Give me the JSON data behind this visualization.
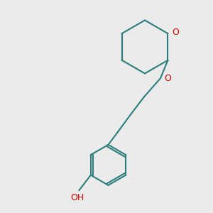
{
  "background_color": "#ebebeb",
  "bond_color": "#2d7d7d",
  "oxygen_color": "#cc0000",
  "bond_width": 1.5,
  "fig_size": [
    3.0,
    3.0
  ],
  "dpi": 100,
  "xlim": [
    0,
    10
  ],
  "ylim": [
    0,
    10
  ]
}
